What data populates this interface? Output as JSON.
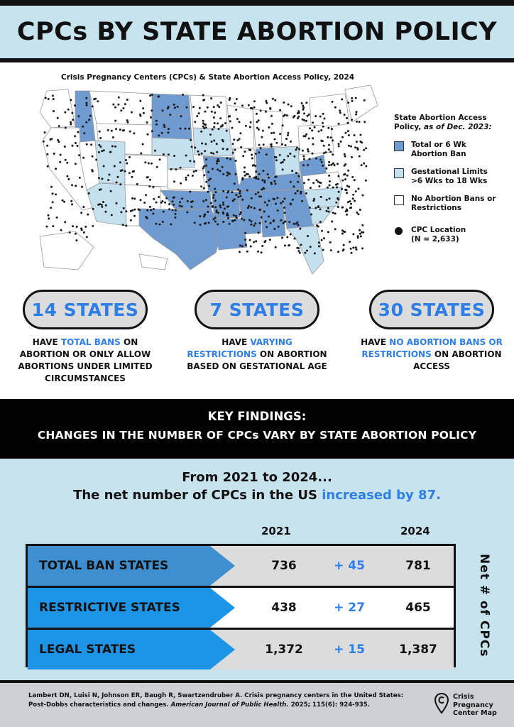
{
  "header": {
    "title": "CPCs BY STATE ABORTION POLICY"
  },
  "map": {
    "title": "Crisis Pregnancy Centers (CPCs) & State Abortion Access Policy, 2024",
    "colors": {
      "ban": "#6f9bd1",
      "gestational": "#c5e1ef",
      "none": "#ffffff",
      "dot": "#1a1a1a"
    }
  },
  "legend": {
    "title": "State Abortion Access Policy,",
    "title_em": "as of Dec. 2023:",
    "items": [
      {
        "label": "Total or 6 Wk\nAbortion Ban",
        "color": "#6f9bd1"
      },
      {
        "label": "Gestational Limits\n>6 Wks to 18 Wks",
        "color": "#c5e1ef"
      },
      {
        "label": "No Abortion Bans or\nRestrictions",
        "color": "#ffffff"
      }
    ],
    "cpc_label": "CPC Location\n(N = 2,633)"
  },
  "stats": [
    {
      "value": "14 STATES",
      "pre": "HAVE ",
      "highlight": "TOTAL BANS",
      "post": " ON ABORTION OR ONLY ALLOW ABORTIONS UNDER LIMITED CIRCUMSTANCES"
    },
    {
      "value": "7 STATES",
      "pre": "HAVE ",
      "highlight": "VARYING RESTRICTIONS",
      "post": " ON ABORTION BASED ON GESTATIONAL AGE"
    },
    {
      "value": "30 STATES",
      "pre": "HAVE ",
      "highlight": "NO ABORTION BANS OR RESTRICTIONS",
      "post": " ON ABORTION ACCESS"
    }
  ],
  "key_findings": {
    "line1": "KEY FINDINGS:",
    "line2": "CHANGES IN THE NUMBER OF CPCs VARY BY STATE ABORTION POLICY"
  },
  "summary": {
    "from": "From 2021 to 2024...",
    "net_pre": "The net number of CPCs in the US ",
    "net_hl": "increased by 87."
  },
  "table": {
    "year1": "2021",
    "year2": "2024",
    "side_label": "Net # of CPCs",
    "rows": [
      {
        "label": "TOTAL BAN STATES",
        "v2021": "736",
        "change": "+ 45",
        "v2024": "781",
        "label_color": "#3d8fcf",
        "band_color": "#dcdcdc"
      },
      {
        "label": "RESTRICTIVE STATES",
        "v2021": "438",
        "change": "+ 27",
        "v2024": "465",
        "label_color": "#1e94e6",
        "band_color": "#ffffff"
      },
      {
        "label": "LEGAL STATES",
        "v2021": "1,372",
        "change": "+ 15",
        "v2024": "1,387",
        "label_color": "#1e94e6",
        "band_color": "#dcdcdc"
      }
    ]
  },
  "footer": {
    "citation_pre": "Lambert DN, Luisi N, Johnson ER, Baugh R, Swartzendruber A. Crisis pregnancy centers in the United States: Post-Dobbs characteristics and changes. ",
    "citation_journal": "American Journal of Public Health.",
    "citation_post": " 2025; 115(6): 924-935.",
    "brand": "Crisis\nPregnancy\nCenter Map"
  }
}
